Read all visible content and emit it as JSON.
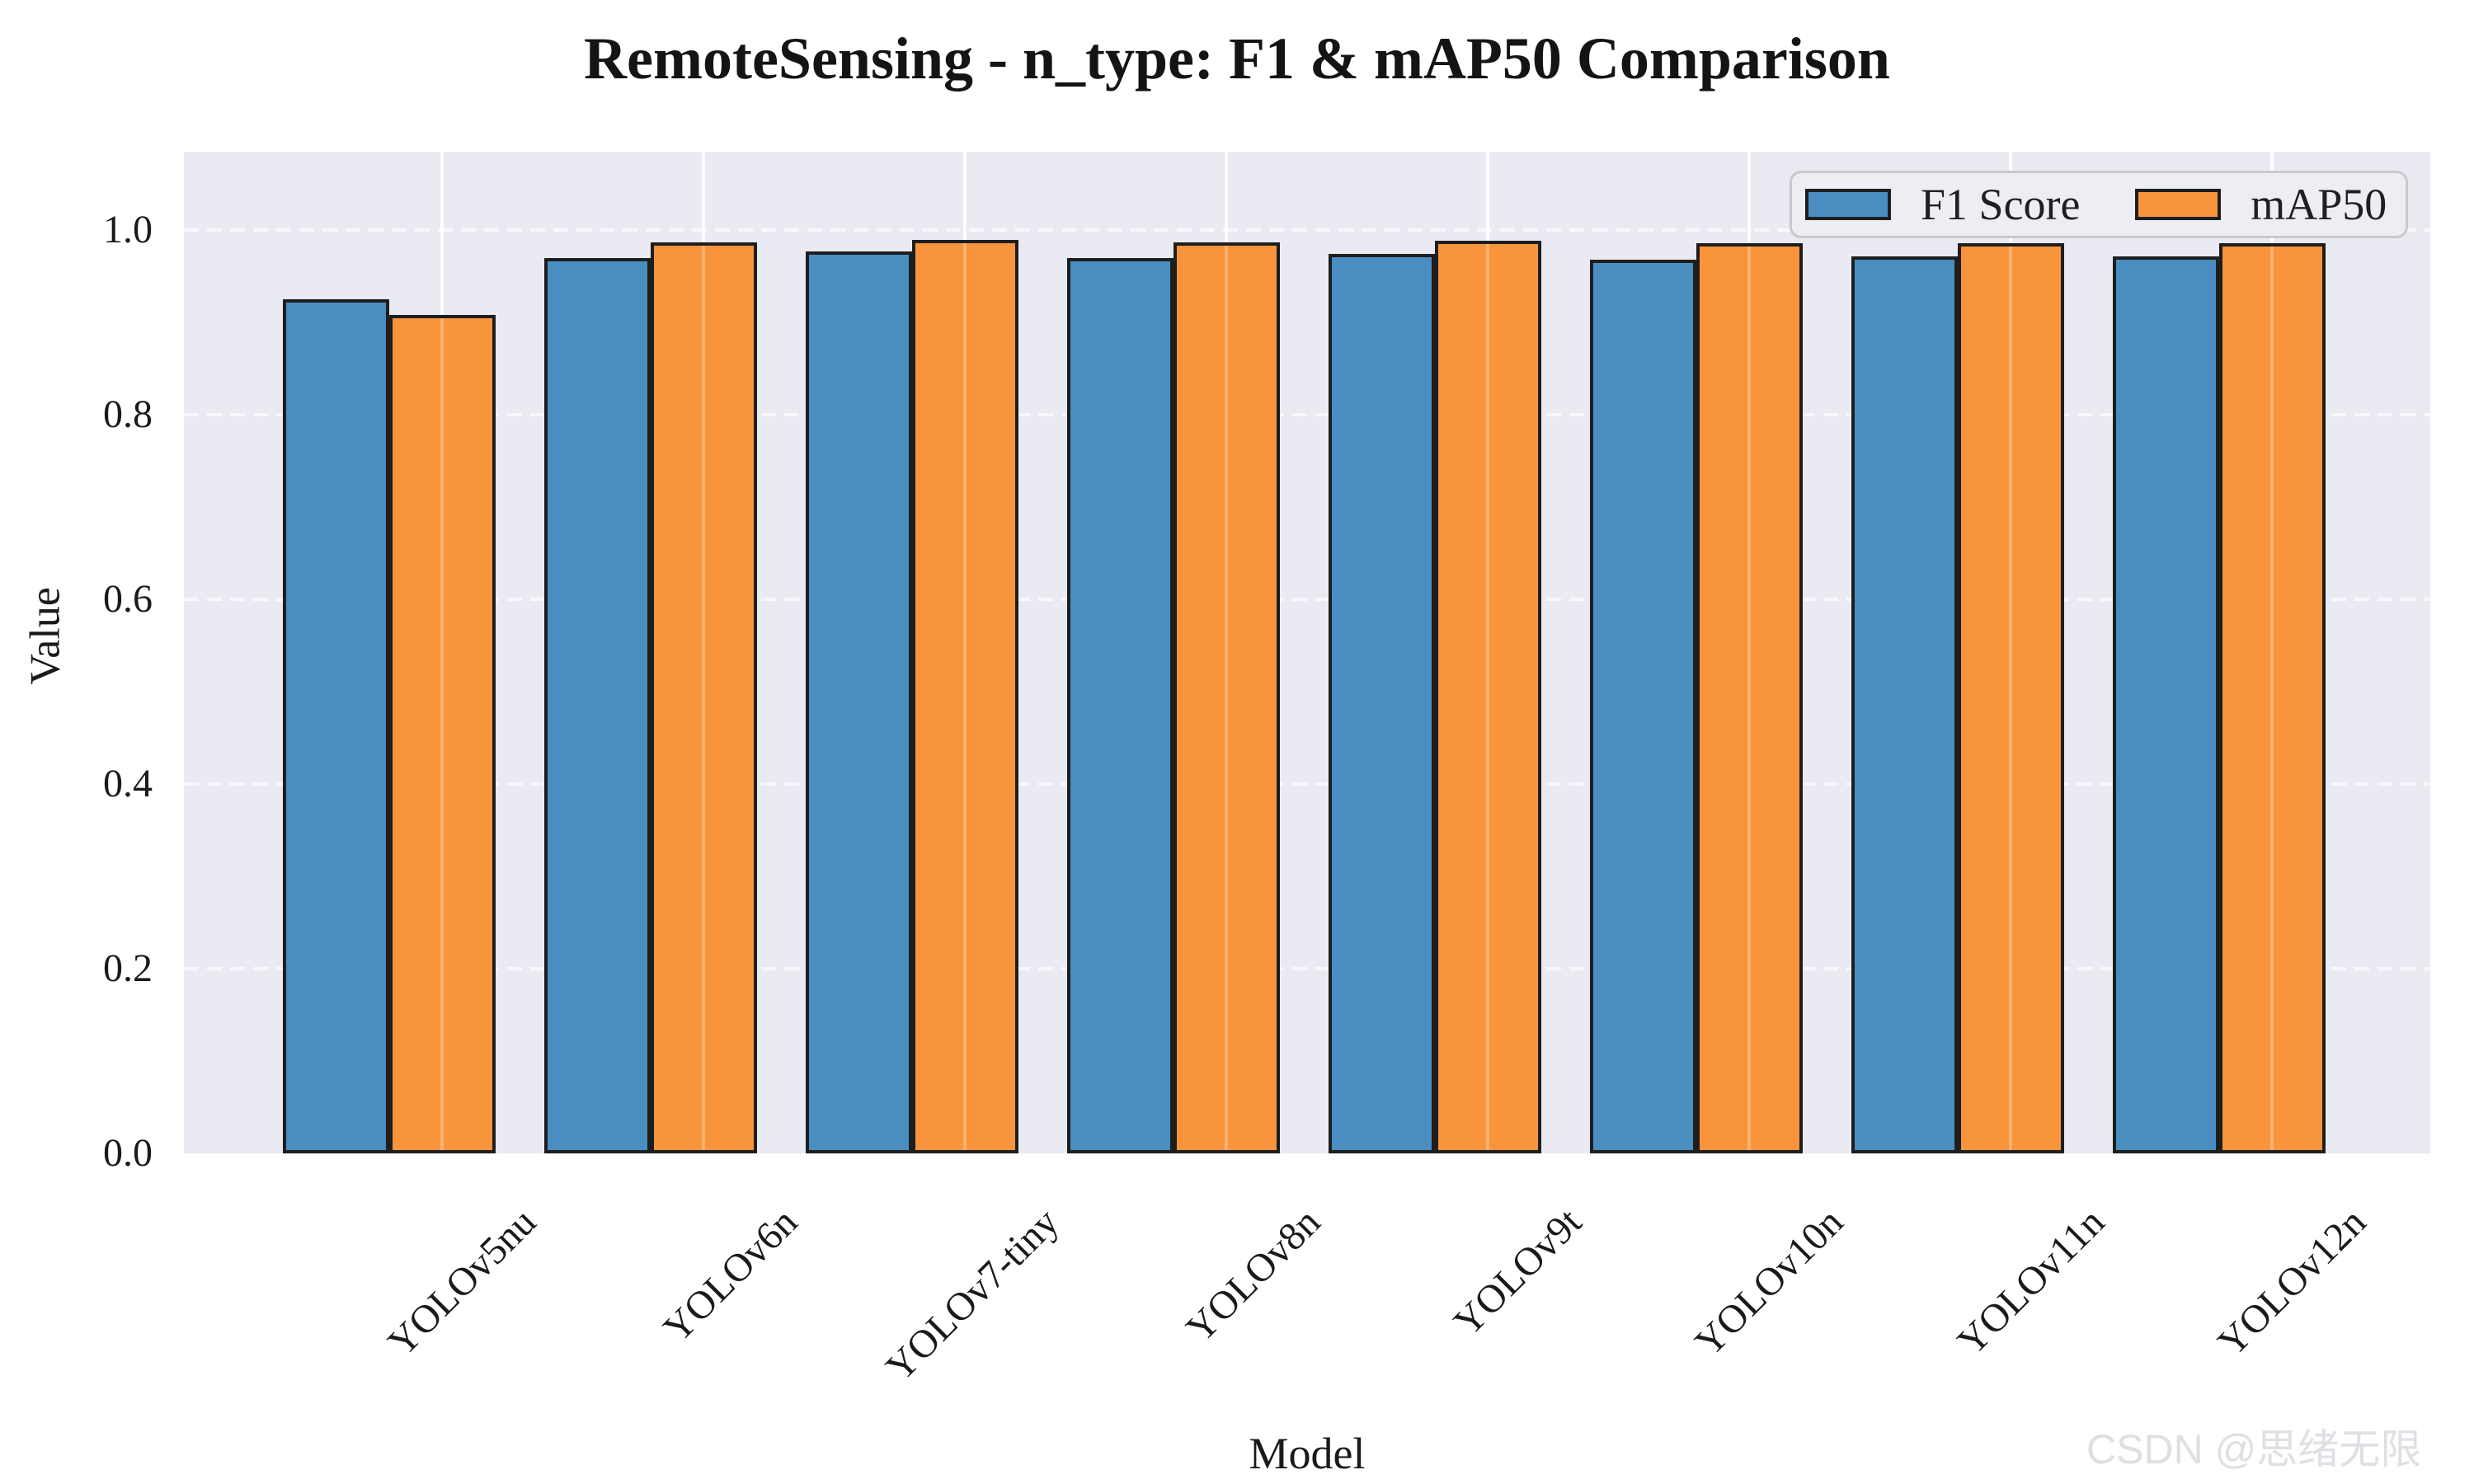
{
  "watermark": "CSDN @思绪无限",
  "chart_data": {
    "type": "bar",
    "title": "RemoteSensing - n_type: F1 & mAP50 Comparison",
    "xlabel": "Model",
    "ylabel": "Value",
    "categories": [
      "YOLOv5nu",
      "YOLOv6n",
      "YOLOv7-tiny",
      "YOLOv8n",
      "YOLOv9t",
      "YOLOv10n",
      "YOLOv11n",
      "YOLOv12n"
    ],
    "series": [
      {
        "name": "F1 Score",
        "color": "#4A8EC1",
        "values": [
          0.925,
          0.97,
          0.977,
          0.97,
          0.974,
          0.968,
          0.971,
          0.971
        ]
      },
      {
        "name": "mAP50",
        "color": "#F8943B",
        "values": [
          0.908,
          0.987,
          0.989,
          0.987,
          0.988,
          0.986,
          0.986,
          0.986
        ]
      }
    ],
    "ylim": [
      0,
      1.085
    ],
    "yticks": [
      "0.0",
      "0.2",
      "0.4",
      "0.6",
      "0.8",
      "1.0"
    ],
    "grid": {
      "y_style": "dashed",
      "x_style": "solid",
      "color": "#FFFFFF"
    },
    "legend_position": "upper right",
    "bar_edge_color": "#1E1E1E",
    "plot_background": "#EAEAF2"
  }
}
